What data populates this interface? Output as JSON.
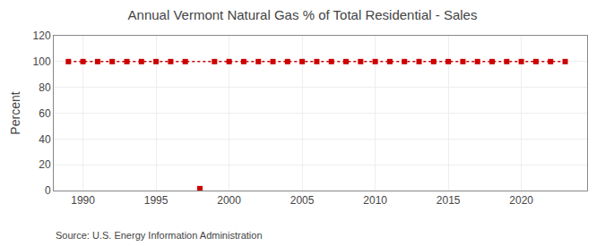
{
  "chart_data": {
    "type": "line",
    "title": "Annual Vermont Natural Gas % of Total Residential - Sales",
    "ylabel": "Percent",
    "annotations": [
      "Source: U.S. Energy Information Administration"
    ],
    "series": [
      {
        "color": "#cc0000",
        "line_style": "dotted",
        "marker": "square",
        "x": [
          1989,
          1990,
          1991,
          1992,
          1993,
          1994,
          1995,
          1996,
          1997,
          1999,
          2000,
          2001,
          2002,
          2003,
          2004,
          2005,
          2006,
          2007,
          2008,
          2009,
          2010,
          2011,
          2012,
          2013,
          2014,
          2015,
          2016,
          2017,
          2018,
          2019,
          2020,
          2021,
          2022,
          2023
        ],
        "values": [
          100,
          100,
          100,
          100,
          100,
          100,
          100,
          100,
          100,
          100,
          100,
          100,
          100,
          100,
          100,
          100,
          100,
          100,
          100,
          100,
          100,
          100,
          100,
          100,
          100,
          100,
          100,
          100,
          100,
          100,
          100,
          100,
          100,
          100
        ]
      },
      {
        "type": "scatter",
        "color": "#cc0000",
        "marker": "square",
        "x": [
          1998
        ],
        "values": [
          1.5
        ]
      }
    ],
    "xlim": [
      1988.0,
      2024.5
    ],
    "xticks": [
      1990,
      1995,
      2000,
      2005,
      2010,
      2015,
      2020
    ],
    "ylim": [
      0,
      120
    ],
    "yticks": [
      0,
      20,
      40,
      60,
      80,
      100,
      120
    ],
    "grid": true
  }
}
